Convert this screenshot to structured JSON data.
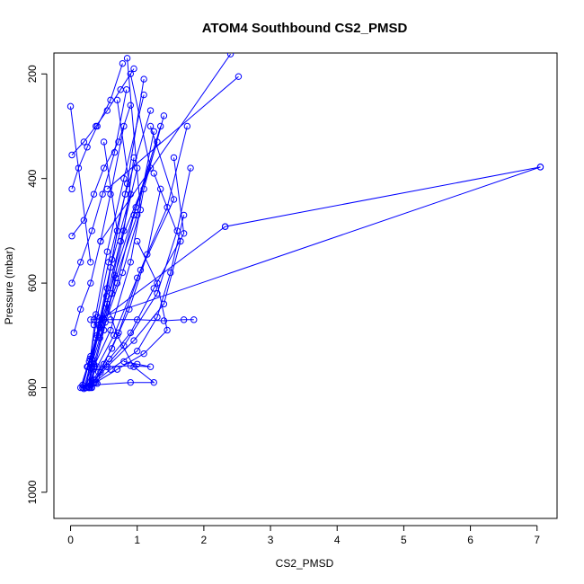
{
  "chart_data": {
    "type": "line",
    "title": "ATOM4 Southbound CS2_PMSD",
    "xlabel": "CS2_PMSD",
    "ylabel": "Pressure (mbar)",
    "xlim": [
      -0.25,
      7.3
    ],
    "ylim": [
      1050,
      160
    ],
    "y_reversed": true,
    "x_ticks": [
      0,
      1,
      2,
      3,
      4,
      5,
      6,
      7
    ],
    "y_ticks": [
      200,
      400,
      600,
      800,
      1000
    ],
    "x_tick_labels": [
      "0",
      "1",
      "2",
      "3",
      "4",
      "5",
      "6",
      "7"
    ],
    "y_tick_labels": [
      "200",
      "400",
      "600",
      "800",
      "1000"
    ],
    "series_color": "#0000ff",
    "marker": "open-circle",
    "grid": false,
    "legend": "none",
    "highlighted_segments": [
      {
        "x": [
          7.05,
          2.32
        ],
        "y": [
          378,
          492
        ]
      },
      {
        "x": [
          7.05,
          0.35
        ],
        "y": [
          378,
          670
        ]
      },
      {
        "x": [
          2.32,
          0.35
        ],
        "y": [
          492,
          680
        ]
      },
      {
        "x": [
          2.52,
          0.55
        ],
        "y": [
          205,
          420
        ]
      },
      {
        "x": [
          2.4,
          0.45
        ],
        "y": [
          162,
          520
        ]
      },
      {
        "x": [
          0.0,
          0.3
        ],
        "y": [
          262,
          560
        ]
      }
    ],
    "profiles": [
      {
        "x": [
          0.22,
          0.35,
          0.6,
          0.9,
          1.1,
          1.4
        ],
        "y": [
          800,
          760,
          690,
          560,
          420,
          280
        ]
      },
      {
        "x": [
          0.18,
          0.28,
          0.5,
          0.75,
          1.2,
          0.9
        ],
        "y": [
          800,
          750,
          670,
          520,
          380,
          200
        ]
      },
      {
        "x": [
          0.3,
          0.32,
          0.45,
          0.7,
          0.95,
          1.3
        ],
        "y": [
          795,
          745,
          680,
          600,
          470,
          330
        ]
      },
      {
        "x": [
          0.25,
          0.4,
          0.65,
          1.0,
          1.55,
          1.2
        ],
        "y": [
          798,
          760,
          700,
          590,
          440,
          300
        ]
      },
      {
        "x": [
          0.35,
          0.3,
          0.38,
          0.55,
          0.8,
          1.1
        ],
        "y": [
          790,
          740,
          660,
          540,
          400,
          240
        ]
      },
      {
        "x": [
          0.28,
          0.45,
          0.8,
          1.3,
          1.6,
          1.8
        ],
        "y": [
          800,
          770,
          720,
          620,
          500,
          380
        ]
      },
      {
        "x": [
          0.2,
          0.3,
          0.42,
          0.6,
          0.9,
          0.7
        ],
        "y": [
          802,
          755,
          680,
          570,
          430,
          250
        ]
      },
      {
        "x": [
          0.4,
          0.5,
          0.72,
          1.05,
          1.45,
          1.75
        ],
        "y": [
          792,
          755,
          695,
          575,
          455,
          300
        ]
      },
      {
        "x": [
          0.32,
          0.36,
          0.5,
          0.68,
          1.0,
          1.25
        ],
        "y": [
          800,
          760,
          690,
          590,
          470,
          310
        ]
      },
      {
        "x": [
          0.15,
          0.25,
          0.4,
          0.55,
          0.7,
          0.5
        ],
        "y": [
          800,
          760,
          700,
          610,
          500,
          330
        ]
      },
      {
        "x": [
          0.3,
          0.55,
          0.95,
          1.4,
          1.65,
          1.25
        ],
        "y": [
          795,
          760,
          710,
          640,
          520,
          390
        ]
      },
      {
        "x": [
          0.28,
          0.33,
          0.47,
          0.62,
          0.85,
          1.1
        ],
        "y": [
          800,
          748,
          668,
          555,
          410,
          210
        ]
      },
      {
        "x": [
          0.36,
          0.58,
          0.9,
          1.25,
          1.7,
          1.55
        ],
        "y": [
          785,
          745,
          695,
          610,
          505,
          360
        ]
      },
      {
        "x": [
          0.22,
          0.3,
          0.44,
          0.62,
          0.8,
          0.95
        ],
        "y": [
          800,
          762,
          705,
          620,
          500,
          360
        ]
      },
      {
        "x": [
          0.26,
          0.42,
          0.62,
          0.88,
          1.15,
          1.35
        ],
        "y": [
          798,
          770,
          725,
          650,
          545,
          420
        ]
      },
      {
        "x": [
          0.3,
          0.35,
          0.52,
          0.78,
          1.05,
          0.85
        ],
        "y": [
          800,
          755,
          675,
          580,
          460,
          170
        ]
      },
      {
        "x": [
          0.18,
          0.26,
          0.38,
          0.54,
          0.75,
          1.0
        ],
        "y": [
          795,
          760,
          705,
          625,
          520,
          380
        ]
      },
      {
        "x": [
          0.34,
          0.6,
          1.0,
          1.3,
          1.5,
          1.7
        ],
        "y": [
          792,
          765,
          730,
          665,
          580,
          470
        ]
      },
      {
        "x": [
          0.24,
          0.29,
          0.4,
          0.57,
          0.82,
          1.2
        ],
        "y": [
          800,
          745,
          665,
          560,
          430,
          270
        ]
      },
      {
        "x": [
          0.38,
          0.7,
          1.1,
          1.45,
          1.3,
          1.0
        ],
        "y": [
          790,
          765,
          735,
          690,
          600,
          520
        ]
      },
      {
        "x": [
          0.27,
          0.31,
          0.44,
          0.66,
          0.98,
          1.35
        ],
        "y": [
          800,
          752,
          685,
          585,
          455,
          300
        ]
      },
      {
        "x": [
          0.3,
          0.9,
          1.25,
          0.95,
          0.7,
          0.55
        ],
        "y": [
          795,
          790,
          790,
          760,
          700,
          640
        ]
      },
      {
        "x": [
          0.05,
          0.15,
          0.3,
          0.45,
          0.6,
          0.8
        ],
        "y": [
          695,
          650,
          600,
          520,
          430,
          300
        ]
      },
      {
        "x": [
          0.02,
          0.2,
          0.35,
          0.5,
          0.72,
          0.9
        ],
        "y": [
          510,
          480,
          430,
          380,
          330,
          260
        ]
      },
      {
        "x": [
          0.02,
          0.15,
          0.32,
          0.48,
          0.66,
          0.84
        ],
        "y": [
          600,
          560,
          500,
          430,
          350,
          230
        ]
      },
      {
        "x": [
          0.02,
          0.12,
          0.25,
          0.4,
          0.6,
          0.78
        ],
        "y": [
          420,
          380,
          340,
          300,
          250,
          180
        ]
      },
      {
        "x": [
          0.02,
          0.2,
          0.38,
          0.55,
          0.75,
          0.95
        ],
        "y": [
          355,
          330,
          300,
          270,
          230,
          190
        ]
      },
      {
        "x": [
          0.3,
          0.6,
          1.0,
          1.4,
          1.7,
          1.85
        ],
        "y": [
          670,
          670,
          670,
          672,
          670,
          670
        ]
      },
      {
        "x": [
          0.25,
          0.55,
          0.9,
          1.2,
          1.0,
          0.8
        ],
        "y": [
          760,
          760,
          758,
          760,
          755,
          750
        ]
      }
    ]
  }
}
